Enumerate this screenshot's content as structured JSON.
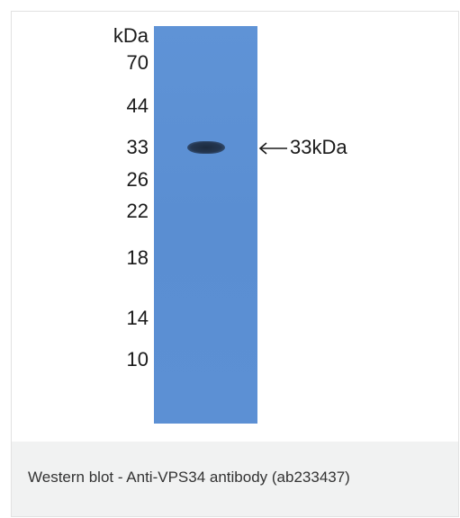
{
  "blot": {
    "unit_label": "kDa",
    "markers": [
      "70",
      "44",
      "33",
      "26",
      "22",
      "18",
      "14",
      "10"
    ],
    "band_label": "33kDa",
    "lane_color": "#5b8fd2",
    "band_color": "#1f2d42"
  },
  "caption": {
    "text": "Western blot - Anti-VPS34 antibody (ab233437)"
  }
}
